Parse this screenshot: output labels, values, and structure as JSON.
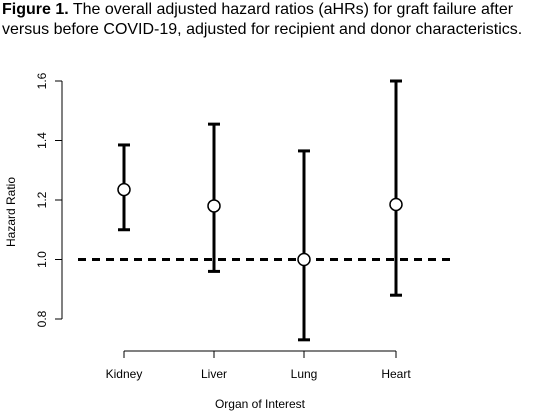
{
  "caption": {
    "label": "Figure 1.",
    "text": "The overall adjusted hazard ratios (aHRs) for graft failure after versus before COVID-19, adjusted for recipient and donor characteristics."
  },
  "chart_data": {
    "type": "scatter",
    "subtype": "error-bar",
    "categories": [
      "Kidney",
      "Liver",
      "Lung",
      "Heart"
    ],
    "estimates": [
      1.235,
      1.18,
      1.0,
      1.185
    ],
    "lower": [
      1.1,
      0.96,
      0.73,
      0.88
    ],
    "upper": [
      1.385,
      1.455,
      1.365,
      1.6
    ],
    "reference_line": 1.0,
    "xlabel": "Organ of Interest",
    "ylabel": "Hazard Ratio",
    "ylim": [
      0.75,
      1.62
    ],
    "yticks": [
      "0.8",
      "1.0",
      "1.2",
      "1.4",
      "1.6"
    ],
    "grid": false,
    "colors": {
      "ink": "#000000"
    }
  }
}
